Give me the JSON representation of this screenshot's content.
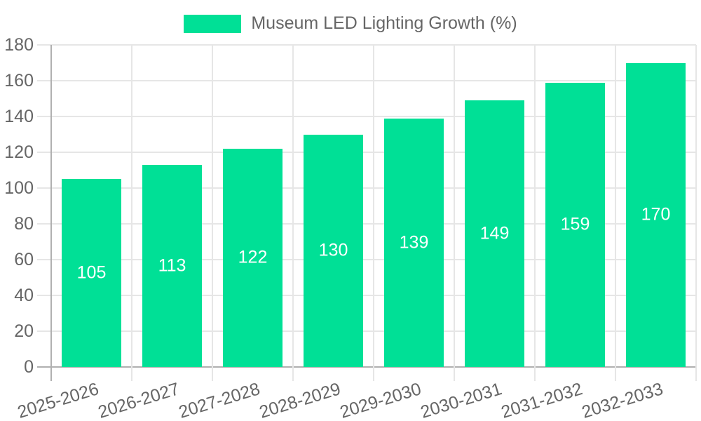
{
  "legend": {
    "label": "Museum LED Lighting Growth (%)"
  },
  "colors": {
    "bar": "#00E096",
    "bar_label_text": "#FFFFFF",
    "axis_text": "#666666",
    "gridline": "#E6E6E6",
    "axis_line": "#B0B0B0",
    "background": "#FFFFFF"
  },
  "chart_data": {
    "type": "bar",
    "title": "",
    "legend_entries": [
      "Museum LED Lighting Growth (%)"
    ],
    "legend_position": "top",
    "categories": [
      "2025-2026",
      "2026-2027",
      "2027-2028",
      "2028-2029",
      "2029-2030",
      "2030-2031",
      "2031-2032",
      "2032-2033"
    ],
    "series": [
      {
        "name": "Museum LED Lighting Growth (%)",
        "values": [
          105,
          113,
          122,
          130,
          139,
          149,
          159,
          170
        ]
      }
    ],
    "bar_value_labels": [
      "105",
      "113",
      "122",
      "130",
      "139",
      "149",
      "159",
      "170"
    ],
    "xlabel": "",
    "ylabel": "",
    "ylim": [
      0,
      180
    ],
    "ytick_step": 20,
    "yticks": [
      0,
      20,
      40,
      60,
      80,
      100,
      120,
      140,
      160,
      180
    ],
    "grid": true,
    "x_label_rotation_deg": -17
  }
}
